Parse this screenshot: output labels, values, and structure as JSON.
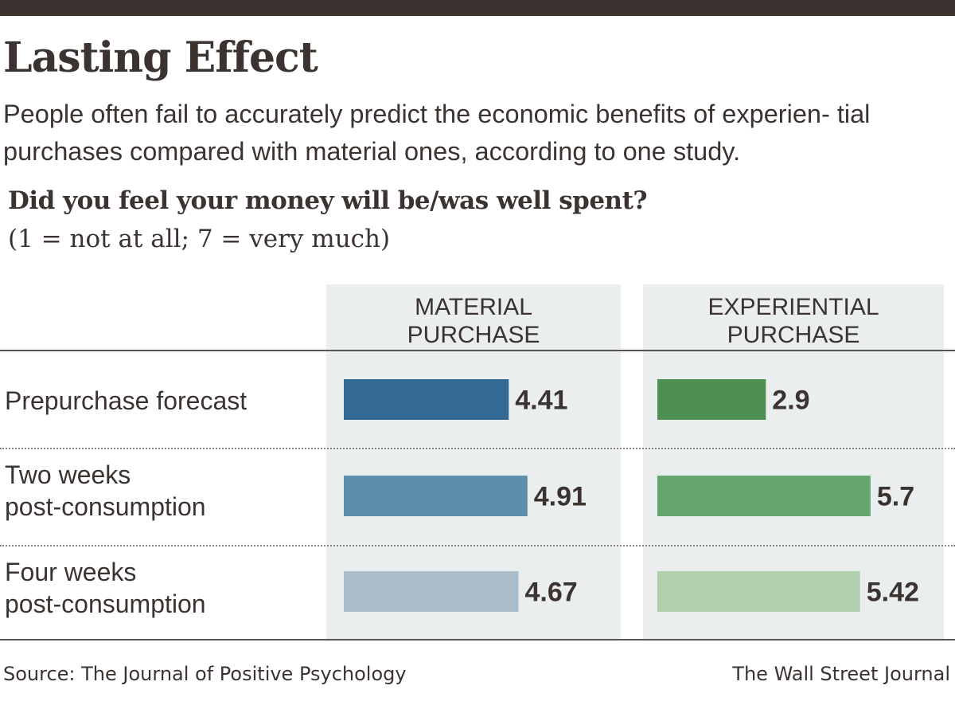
{
  "header": {
    "title": "Lasting Effect",
    "subtitle": "People often fail to accurately predict the economic benefits of experien- tial purchases compared with material ones, according to one study.",
    "question": "Did you feel your money will be/was well spent?",
    "scale_note": "(1 = not at all; 7 = very much)"
  },
  "columns": {
    "material_label": "MATERIAL\nPURCHASE",
    "experiential_label": "EXPERIENTIAL\nPURCHASE"
  },
  "footer": {
    "source": "Source: The Journal of Positive Psychology",
    "credit": "The Wall Street Journal"
  },
  "colors": {
    "material": [
      "#336a93",
      "#5d8eab",
      "#a9bdcb"
    ],
    "experiential": [
      "#4f8f52",
      "#65a66f",
      "#b0cfad"
    ]
  },
  "chart_data": {
    "type": "bar",
    "orientation": "horizontal",
    "title": "Did you feel your money will be/was well spent?",
    "scale": "(1 = not at all; 7 = very much)",
    "categories": [
      "Prepurchase forecast",
      "Two weeks\npost-consumption",
      "Four weeks\npost-consumption"
    ],
    "series": [
      {
        "name": "MATERIAL PURCHASE",
        "values": [
          4.41,
          4.91,
          4.67
        ]
      },
      {
        "name": "EXPERIENTIAL PURCHASE",
        "values": [
          2.9,
          5.7,
          5.42
        ]
      }
    ],
    "value_labels": [
      [
        "4.41",
        "4.91",
        "4.67"
      ],
      [
        "2.9",
        "5.7",
        "5.42"
      ]
    ],
    "xlim": [
      0,
      7
    ]
  }
}
